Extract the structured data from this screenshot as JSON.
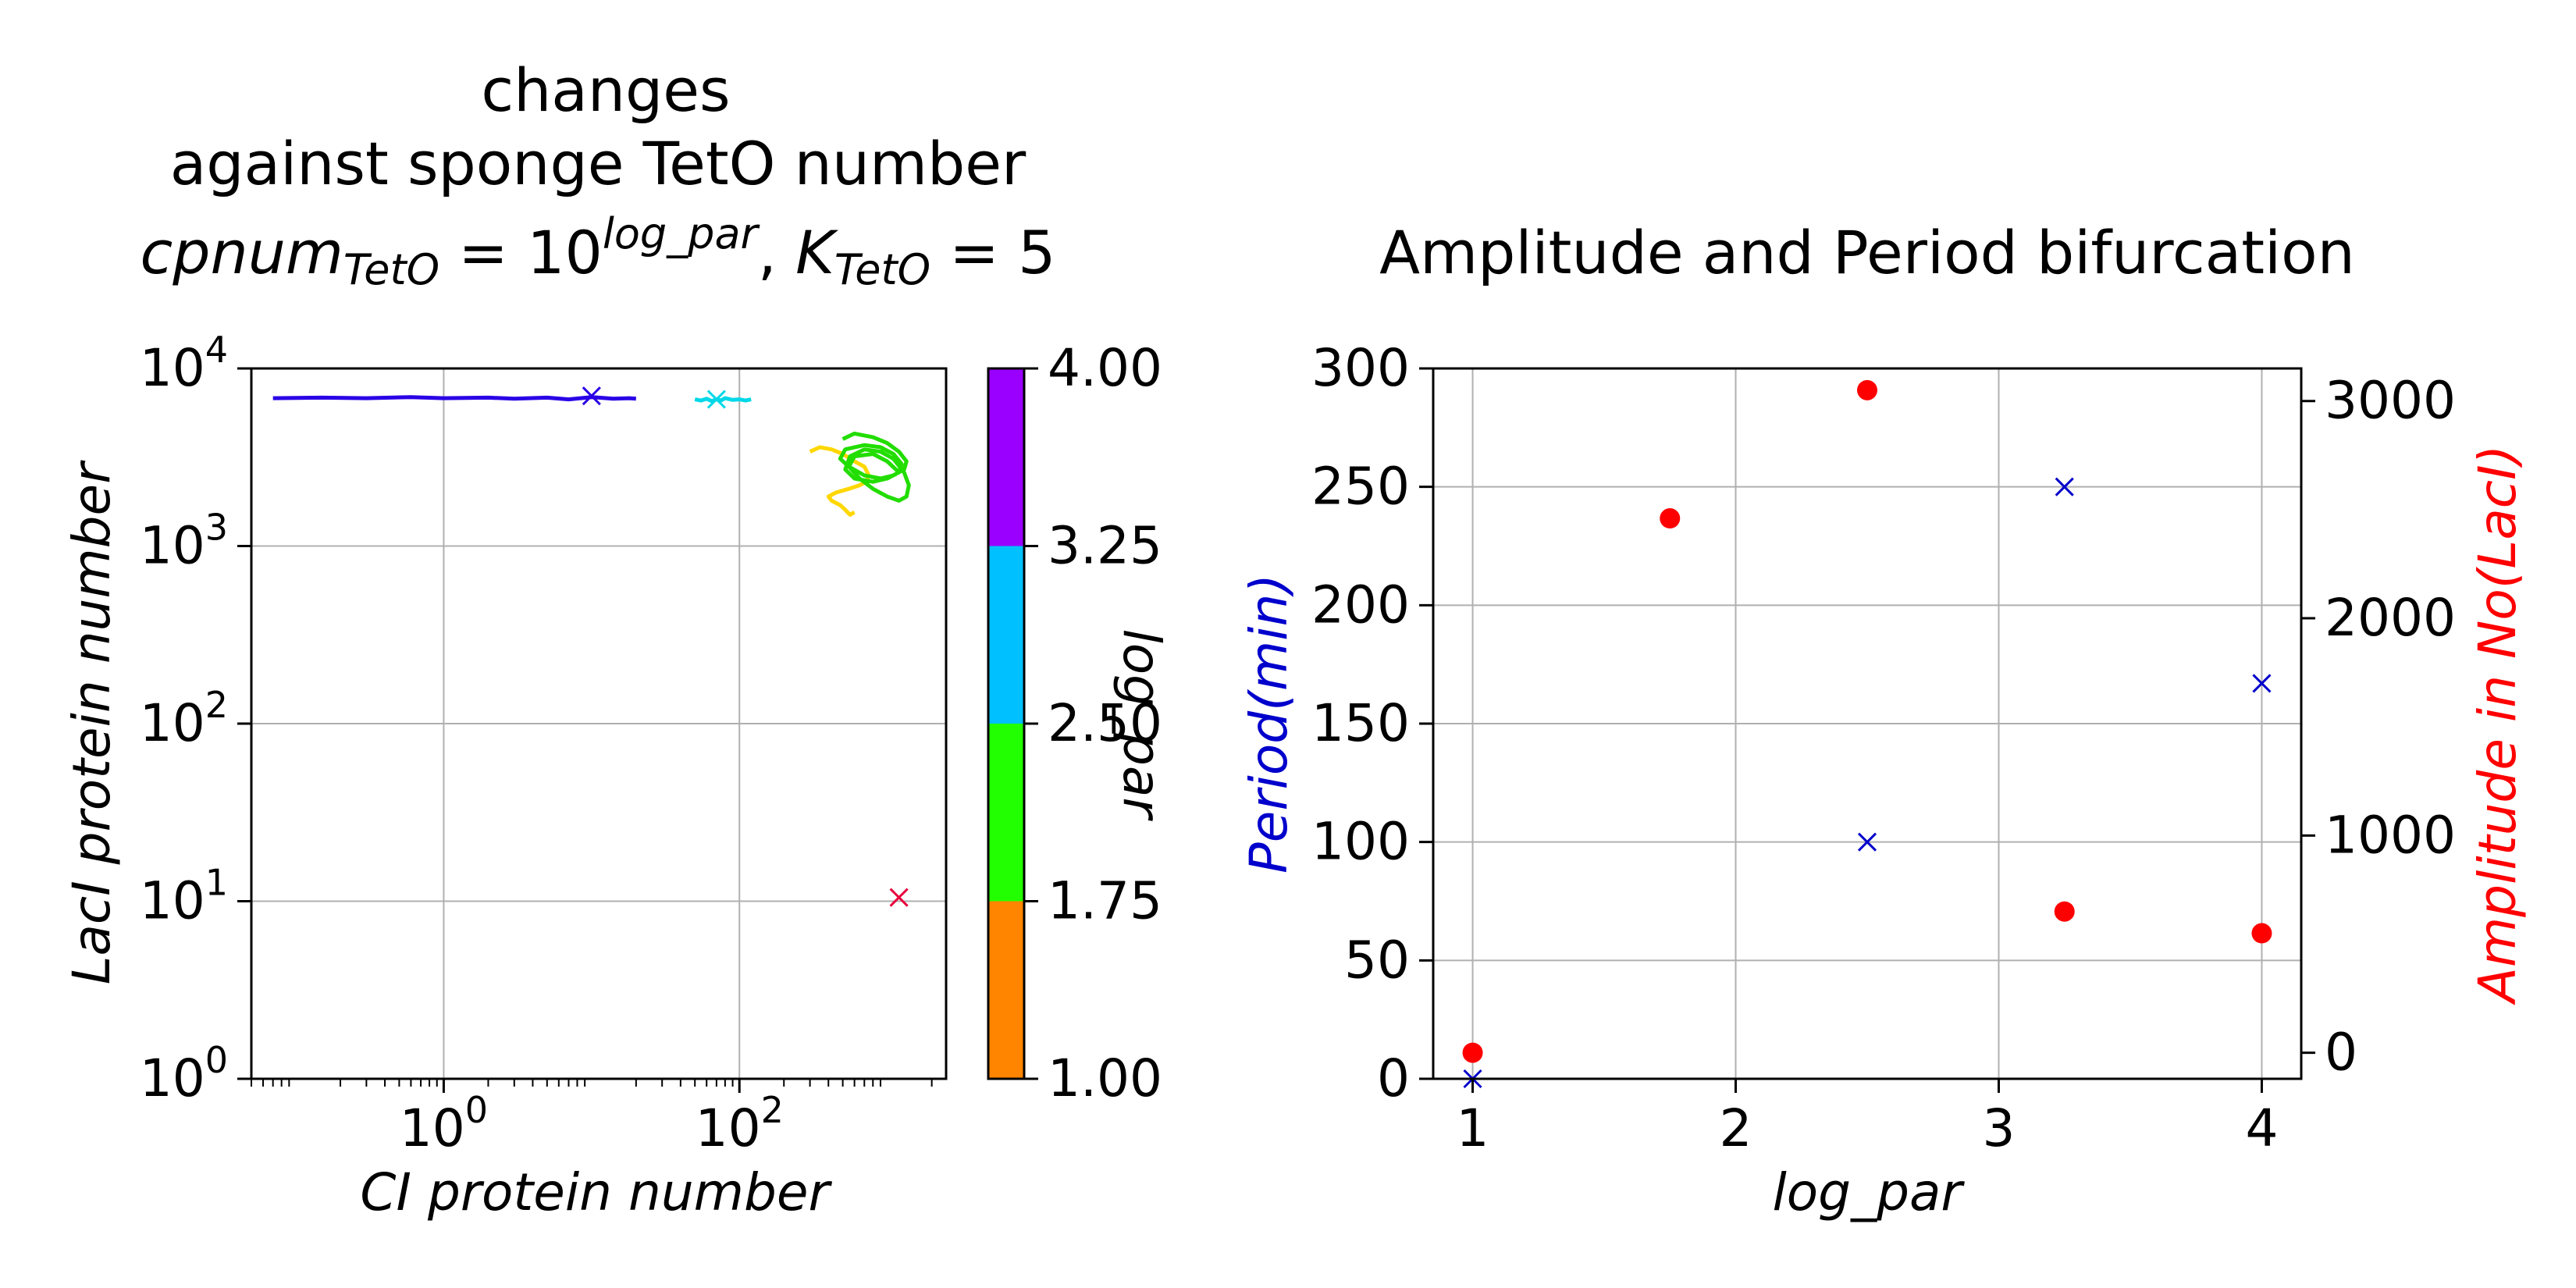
{
  "chart_data": [
    {
      "type": "line",
      "title_lines": [
        "changes",
        "against sponge TetO number"
      ],
      "title_formula": {
        "base": "cpnum",
        "sub1": "TetO",
        "eq1": " = 10",
        "sup": "log_par",
        "sep": ",  ",
        "k": "K",
        "sub2": "TetO",
        "eq2": " = 5"
      },
      "xlabel": "CI protein number",
      "ylabel": "LacI protein number",
      "xscale": "log",
      "yscale": "log",
      "xlim": [
        0.05,
        2500
      ],
      "ylim": [
        1,
        10000
      ],
      "x_ticks": [
        {
          "base": "10",
          "exp": "0",
          "value": 1
        },
        {
          "base": "10",
          "exp": "2",
          "value": 100
        }
      ],
      "y_ticks": [
        {
          "base": "10",
          "exp": "0",
          "value": 1
        },
        {
          "base": "10",
          "exp": "1",
          "value": 10
        },
        {
          "base": "10",
          "exp": "2",
          "value": 100
        },
        {
          "base": "10",
          "exp": "3",
          "value": 1000
        },
        {
          "base": "10",
          "exp": "4",
          "value": 10000
        }
      ],
      "grid": true,
      "series": [
        {
          "color": "#ffd700",
          "x": [
            300,
            350,
            420,
            500,
            600,
            700,
            750,
            720,
            650,
            550,
            450,
            400,
            420,
            480,
            520,
            560,
            600
          ],
          "y": [
            3400,
            3600,
            3500,
            3300,
            3000,
            2800,
            2500,
            2300,
            2200,
            2100,
            2000,
            1900,
            1800,
            1700,
            1600,
            1500,
            1550
          ]
        },
        {
          "color": "#22dd00",
          "x": [
            500,
            600,
            800,
            1000,
            1200,
            1350,
            1300,
            1100,
            900,
            700,
            550,
            480,
            520,
            700,
            900,
            1100,
            1250,
            1200,
            1000,
            800,
            600,
            520,
            560,
            700,
            900,
            1100,
            1300,
            1400,
            1350,
            1200,
            1000,
            800,
            650,
            550,
            600,
            800,
            1000,
            1200
          ],
          "y": [
            4000,
            4300,
            4100,
            3800,
            3400,
            3000,
            2700,
            2500,
            2400,
            2500,
            2800,
            3100,
            3500,
            3700,
            3600,
            3300,
            2900,
            2600,
            2400,
            2300,
            2400,
            2700,
            3200,
            3500,
            3400,
            3100,
            2600,
            2200,
            1900,
            1800,
            1900,
            2100,
            2400,
            2800,
            3200,
            3300,
            3000,
            2600
          ]
        },
        {
          "color": "#00d8e8",
          "x": [
            50,
            55,
            60,
            65,
            70,
            75,
            80,
            90,
            100,
            110,
            120
          ],
          "y": [
            6700,
            6600,
            6750,
            6550,
            6700,
            6600,
            6800,
            6650,
            6700,
            6600,
            6700
          ]
        },
        {
          "color": "#2a00e6",
          "x": [
            0.07,
            0.15,
            0.3,
            0.6,
            1,
            2,
            3,
            5,
            7,
            10,
            14,
            18,
            20
          ],
          "y": [
            6800,
            6850,
            6800,
            6900,
            6800,
            6850,
            6750,
            6850,
            6700,
            6900,
            6750,
            6800,
            6750
          ]
        }
      ],
      "markers": [
        {
          "color": "#2a00e6",
          "x": 10,
          "y": 7000,
          "symbol": "x"
        },
        {
          "color": "#00d8e8",
          "x": 70,
          "y": 6700,
          "symbol": "x"
        },
        {
          "color": "#e8003c",
          "x": 1200,
          "y": 10.5,
          "symbol": "x"
        }
      ],
      "colorbar": {
        "label": "log_par",
        "tick_labels": [
          "1.00",
          "1.75",
          "2.50",
          "3.25",
          "4.00"
        ],
        "bands": [
          {
            "from": 1.0,
            "to": 1.75,
            "color": "#ff8500"
          },
          {
            "from": 1.75,
            "to": 2.5,
            "color": "#22ff00"
          },
          {
            "from": 2.5,
            "to": 3.25,
            "color": "#00c0ff"
          },
          {
            "from": 3.25,
            "to": 4.0,
            "color": "#9a00ff"
          }
        ]
      }
    },
    {
      "type": "scatter",
      "title": "Amplitude and Period bifurcation",
      "xlabel": "log_par",
      "ylabel": "Period(min)",
      "ylabel_right": "Amplitude in No(LacI)",
      "xlim": [
        0.85,
        4.15
      ],
      "ylim": [
        0,
        300
      ],
      "ylim_right": [
        -120,
        3150
      ],
      "x_ticks": [
        "1",
        "2",
        "3",
        "4"
      ],
      "y_ticks": [
        "0",
        "50",
        "100",
        "150",
        "200",
        "250",
        "300"
      ],
      "y_ticks_right": [
        "0",
        "1000",
        "2000",
        "3000"
      ],
      "grid": true,
      "series": [
        {
          "axis": "left",
          "color": "#0000cc",
          "symbol": "x",
          "x": [
            1,
            2.5,
            3.25,
            4
          ],
          "y": [
            0,
            100,
            250,
            167
          ]
        },
        {
          "axis": "right",
          "color": "#ff0000",
          "symbol": "circle",
          "x": [
            1,
            1.75,
            2.5,
            3.25,
            4
          ],
          "y": [
            0,
            2460,
            3050,
            650,
            550
          ]
        }
      ]
    }
  ]
}
